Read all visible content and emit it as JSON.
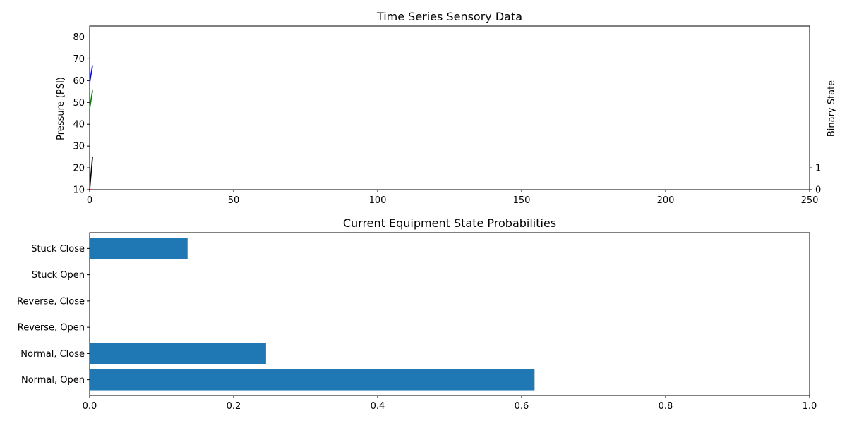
{
  "chart_data": [
    {
      "type": "line",
      "title": "Time Series Sensory Data",
      "ylabel": "Pressure (PSI)",
      "ylabel_right": "Binary State",
      "xlim": [
        0,
        250
      ],
      "ylim": [
        10,
        85
      ],
      "ylim_right": [
        0,
        7.5
      ],
      "xticks": [
        "0",
        "50",
        "100",
        "150",
        "200",
        "250"
      ],
      "yticks": [
        "10",
        "20",
        "30",
        "40",
        "50",
        "60",
        "70",
        "80"
      ],
      "yticks_right": [
        "0",
        "1"
      ],
      "grid": false,
      "series": [
        {
          "color": "#0000ff",
          "x": [
            0,
            1
          ],
          "y": [
            59,
            67
          ]
        },
        {
          "color": "#008000",
          "x": [
            0,
            1
          ],
          "y": [
            47,
            55.5
          ]
        },
        {
          "color": "#000000",
          "x": [
            0,
            1
          ],
          "y": [
            10,
            25
          ]
        },
        {
          "color": "#ff0000",
          "axis": "right",
          "x": [
            0,
            1
          ],
          "y": [
            0,
            0
          ]
        }
      ]
    },
    {
      "type": "bar",
      "orientation": "horizontal",
      "title": "Current Equipment State Probabilities",
      "xlim": [
        0,
        1.0
      ],
      "xticks": [
        "0.0",
        "0.2",
        "0.4",
        "0.6",
        "0.8",
        "1.0"
      ],
      "grid": false,
      "color": "#1f77b4",
      "categories": [
        "Normal, Open",
        "Normal, Close",
        "Reverse, Open",
        "Reverse, Close",
        "Stuck Open",
        "Stuck Close"
      ],
      "values": [
        0.618,
        0.245,
        0.0,
        0.0,
        0.0,
        0.136
      ]
    }
  ]
}
